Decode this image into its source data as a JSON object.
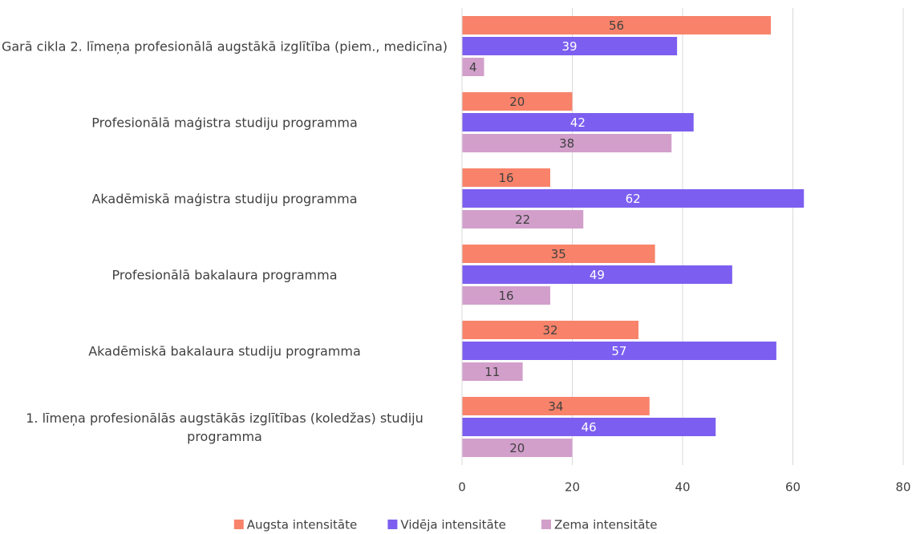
{
  "chart_data": {
    "type": "bar",
    "orientation": "horizontal",
    "categories": [
      "Garā cikla 2. līmeņa profesionālā augstākā izglītība (piem., medicīna)",
      "Profesionālā maģistra studiju programma",
      "Akadēmiskā maģistra studiju programma",
      "Profesionālā bakalaura programma",
      "Akadēmiskā bakalaura studiju programma",
      "1. līmeņa profesionālās augstākās izglītības (koledžas) studiju programma"
    ],
    "series": [
      {
        "name": "Augsta intensitāte",
        "color": "#f8836a",
        "values": [
          56,
          20,
          16,
          35,
          32,
          34
        ]
      },
      {
        "name": "Vidēja intensitāte",
        "color": "#7c5ff0",
        "values": [
          39,
          42,
          62,
          49,
          57,
          46
        ]
      },
      {
        "name": "Zema intensitāte",
        "color": "#d29fcb",
        "values": [
          4,
          38,
          22,
          16,
          11,
          20
        ]
      }
    ],
    "xlim": [
      0,
      80
    ],
    "xticks": [
      0,
      20,
      40,
      60,
      80
    ],
    "grid": true,
    "legend": "bottom"
  }
}
